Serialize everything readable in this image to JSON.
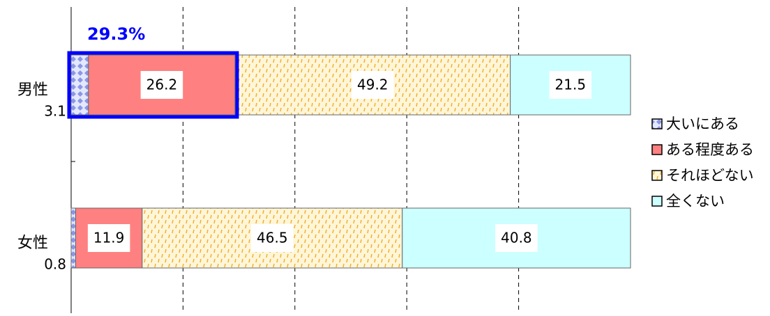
{
  "chart_data": {
    "type": "stacked-bar-horizontal",
    "categories": [
      "男性",
      "女性"
    ],
    "series": [
      {
        "name": "大いにある",
        "color": "#c4ccf4",
        "values": [
          3.1,
          0.8
        ]
      },
      {
        "name": "ある程度ある",
        "color": "#ff8080",
        "values": [
          26.2,
          11.9
        ]
      },
      {
        "name": "それほどない",
        "color": "#fff2c8",
        "values": [
          49.2,
          46.5
        ]
      },
      {
        "name": "全くない",
        "color": "#ccffff",
        "values": [
          21.5,
          40.8
        ]
      }
    ],
    "xlim": [
      0,
      100
    ],
    "xticks": [
      0,
      20,
      40,
      60,
      80,
      100
    ],
    "grid": true,
    "annotation": "29.3%",
    "annotation_color": "#0000ff",
    "legend": "right"
  }
}
